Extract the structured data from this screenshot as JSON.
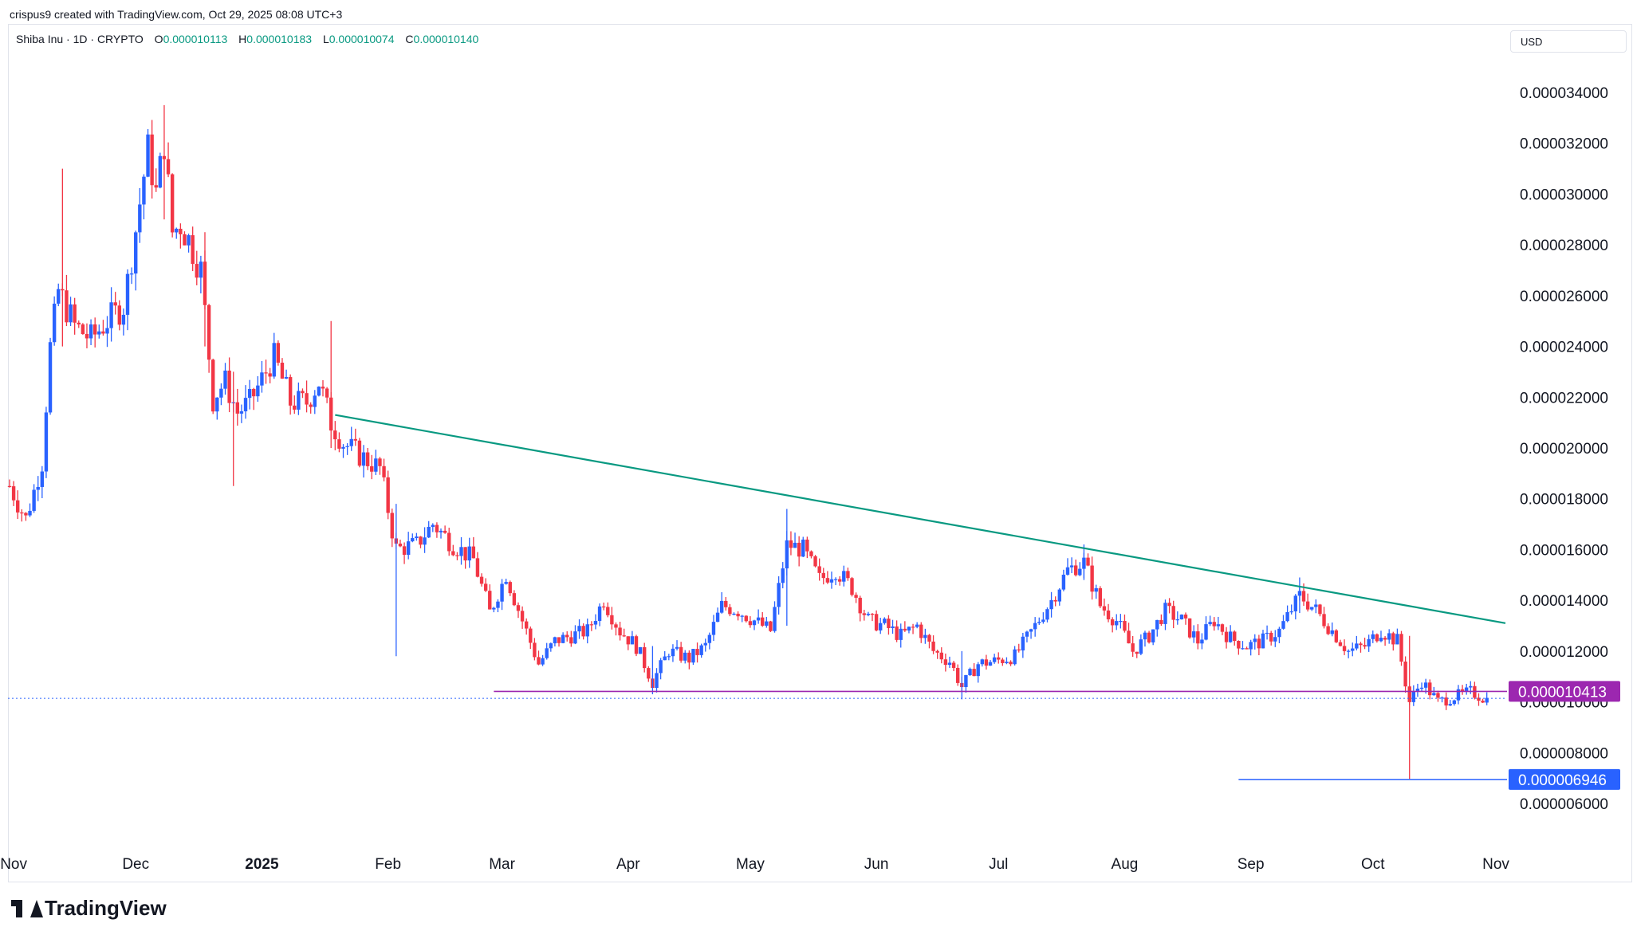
{
  "header": {
    "created_by": "crispus9 created with TradingView.com, Oct 29, 2025 08:08 UTC+3"
  },
  "legend": {
    "symbol": "Shiba Inu · 1D · CRYPTO",
    "o_label": "O",
    "o_value": "0.000010113",
    "h_label": "H",
    "h_value": "0.000010183",
    "l_label": "L",
    "l_value": "0.000010074",
    "c_label": "C",
    "c_value": "0.000010140"
  },
  "currency_button": "USD",
  "brand": "TradingView",
  "colors": {
    "up": "#2962ff",
    "down": "#f23645",
    "trendline": "#089981",
    "support": "#9c27b0",
    "low_line": "#2962ff"
  },
  "chart_data": {
    "type": "candlestick",
    "timeframe": "1D",
    "x_ticks": [
      "Nov",
      "Dec",
      "2025",
      "Feb",
      "Mar",
      "Apr",
      "May",
      "Jun",
      "Jul",
      "Aug",
      "Sep",
      "Oct",
      "Nov"
    ],
    "y_ticks": [
      "0.000034000",
      "0.000032000",
      "0.000030000",
      "0.000028000",
      "0.000026000",
      "0.000024000",
      "0.000022000",
      "0.000020000",
      "0.000018000",
      "0.000016000",
      "0.000014000",
      "0.000012000",
      "0.000010000",
      "0.000008000",
      "0.000006000"
    ],
    "ylim": [
      5e-06,
      3.55e-05
    ],
    "xlim": [
      "2024-10-31",
      "2025-11-01"
    ],
    "price_labels": [
      {
        "text": "0.000010413",
        "value": 1.0413e-05,
        "color": "#9c27b0"
      },
      {
        "text": "0.000006946",
        "value": 6.946e-06,
        "color": "#2962ff"
      }
    ],
    "trendline": {
      "from": {
        "date": "2025-01-19",
        "value": 2.13e-05
      },
      "to": {
        "date": "2025-11-01",
        "value": 1.31e-05
      }
    },
    "support_line": {
      "from": "2025-02-27",
      "to": "2025-11-01",
      "value": 1.0413e-05
    },
    "low_line": {
      "from": "2025-08-29",
      "to": "2025-11-01",
      "value": 6.946e-06
    },
    "last_close": 1.014e-05,
    "closes": [
      {
        "d": "2024-10-31",
        "v": 1.85e-05
      },
      {
        "d": "2024-11-04",
        "v": 1.72e-05
      },
      {
        "d": "2024-11-08",
        "v": 1.94e-05
      },
      {
        "d": "2024-11-10",
        "v": 2.4e-05
      },
      {
        "d": "2024-11-12",
        "v": 2.62e-05
      },
      {
        "d": "2024-11-16",
        "v": 2.48e-05
      },
      {
        "d": "2024-11-20",
        "v": 2.43e-05
      },
      {
        "d": "2024-11-24",
        "v": 2.5e-05
      },
      {
        "d": "2024-11-28",
        "v": 2.56e-05
      },
      {
        "d": "2024-11-30",
        "v": 2.75e-05
      },
      {
        "d": "2024-12-04",
        "v": 3.18e-05
      },
      {
        "d": "2024-12-06",
        "v": 3e-05
      },
      {
        "d": "2024-12-08",
        "v": 3.2e-05
      },
      {
        "d": "2024-12-10",
        "v": 2.85e-05
      },
      {
        "d": "2024-12-12",
        "v": 2.88e-05
      },
      {
        "d": "2024-12-14",
        "v": 2.82e-05
      },
      {
        "d": "2024-12-17",
        "v": 2.7e-05
      },
      {
        "d": "2024-12-20",
        "v": 2.2e-05
      },
      {
        "d": "2024-12-23",
        "v": 2.26e-05
      },
      {
        "d": "2024-12-26",
        "v": 2.14e-05
      },
      {
        "d": "2024-12-29",
        "v": 2.18e-05
      },
      {
        "d": "2025-01-04",
        "v": 2.36e-05
      },
      {
        "d": "2025-01-08",
        "v": 2.18e-05
      },
      {
        "d": "2025-01-12",
        "v": 2.18e-05
      },
      {
        "d": "2025-01-15",
        "v": 2.26e-05
      },
      {
        "d": "2025-01-18",
        "v": 2.1e-05
      },
      {
        "d": "2025-01-21",
        "v": 2.02e-05
      },
      {
        "d": "2025-01-26",
        "v": 1.96e-05
      },
      {
        "d": "2025-01-30",
        "v": 1.92e-05
      },
      {
        "d": "2025-02-03",
        "v": 1.6e-05
      },
      {
        "d": "2025-02-08",
        "v": 1.62e-05
      },
      {
        "d": "2025-02-12",
        "v": 1.7e-05
      },
      {
        "d": "2025-02-17",
        "v": 1.62e-05
      },
      {
        "d": "2025-02-22",
        "v": 1.56e-05
      },
      {
        "d": "2025-02-26",
        "v": 1.35e-05
      },
      {
        "d": "2025-03-02",
        "v": 1.5e-05
      },
      {
        "d": "2025-03-06",
        "v": 1.32e-05
      },
      {
        "d": "2025-03-10",
        "v": 1.15e-05
      },
      {
        "d": "2025-03-14",
        "v": 1.24e-05
      },
      {
        "d": "2025-03-18",
        "v": 1.26e-05
      },
      {
        "d": "2025-03-22",
        "v": 1.28e-05
      },
      {
        "d": "2025-03-26",
        "v": 1.4e-05
      },
      {
        "d": "2025-03-30",
        "v": 1.28e-05
      },
      {
        "d": "2025-04-03",
        "v": 1.22e-05
      },
      {
        "d": "2025-04-07",
        "v": 1.08e-05
      },
      {
        "d": "2025-04-11",
        "v": 1.2e-05
      },
      {
        "d": "2025-04-16",
        "v": 1.17e-05
      },
      {
        "d": "2025-04-20",
        "v": 1.22e-05
      },
      {
        "d": "2025-04-24",
        "v": 1.38e-05
      },
      {
        "d": "2025-04-28",
        "v": 1.36e-05
      },
      {
        "d": "2025-05-02",
        "v": 1.32e-05
      },
      {
        "d": "2025-05-06",
        "v": 1.28e-05
      },
      {
        "d": "2025-05-10",
        "v": 1.62e-05
      },
      {
        "d": "2025-05-14",
        "v": 1.6e-05
      },
      {
        "d": "2025-05-18",
        "v": 1.48e-05
      },
      {
        "d": "2025-05-22",
        "v": 1.52e-05
      },
      {
        "d": "2025-05-26",
        "v": 1.45e-05
      },
      {
        "d": "2025-05-30",
        "v": 1.32e-05
      },
      {
        "d": "2025-06-03",
        "v": 1.3e-05
      },
      {
        "d": "2025-06-07",
        "v": 1.26e-05
      },
      {
        "d": "2025-06-11",
        "v": 1.3e-05
      },
      {
        "d": "2025-06-15",
        "v": 1.2e-05
      },
      {
        "d": "2025-06-19",
        "v": 1.16e-05
      },
      {
        "d": "2025-06-22",
        "v": 1.06e-05
      },
      {
        "d": "2025-06-26",
        "v": 1.15e-05
      },
      {
        "d": "2025-06-30",
        "v": 1.16e-05
      },
      {
        "d": "2025-07-05",
        "v": 1.18e-05
      },
      {
        "d": "2025-07-10",
        "v": 1.3e-05
      },
      {
        "d": "2025-07-14",
        "v": 1.4e-05
      },
      {
        "d": "2025-07-18",
        "v": 1.52e-05
      },
      {
        "d": "2025-07-22",
        "v": 1.55e-05
      },
      {
        "d": "2025-07-26",
        "v": 1.38e-05
      },
      {
        "d": "2025-07-30",
        "v": 1.32e-05
      },
      {
        "d": "2025-08-03",
        "v": 1.2e-05
      },
      {
        "d": "2025-08-07",
        "v": 1.26e-05
      },
      {
        "d": "2025-08-11",
        "v": 1.36e-05
      },
      {
        "d": "2025-08-15",
        "v": 1.32e-05
      },
      {
        "d": "2025-08-19",
        "v": 1.24e-05
      },
      {
        "d": "2025-08-23",
        "v": 1.32e-05
      },
      {
        "d": "2025-08-27",
        "v": 1.25e-05
      },
      {
        "d": "2025-08-31",
        "v": 1.22e-05
      },
      {
        "d": "2025-09-04",
        "v": 1.24e-05
      },
      {
        "d": "2025-09-08",
        "v": 1.28e-05
      },
      {
        "d": "2025-09-13",
        "v": 1.42e-05
      },
      {
        "d": "2025-09-17",
        "v": 1.36e-05
      },
      {
        "d": "2025-09-21",
        "v": 1.28e-05
      },
      {
        "d": "2025-09-25",
        "v": 1.2e-05
      },
      {
        "d": "2025-09-29",
        "v": 1.22e-05
      },
      {
        "d": "2025-10-03",
        "v": 1.28e-05
      },
      {
        "d": "2025-10-07",
        "v": 1.24e-05
      },
      {
        "d": "2025-10-10",
        "v": 1e-05
      },
      {
        "d": "2025-10-13",
        "v": 1.08e-05
      },
      {
        "d": "2025-10-17",
        "v": 1e-05
      },
      {
        "d": "2025-10-21",
        "v": 1.02e-05
      },
      {
        "d": "2025-10-25",
        "v": 1.04e-05
      },
      {
        "d": "2025-10-29",
        "v": 1.01e-05
      }
    ],
    "spikes": [
      {
        "d": "2024-11-13",
        "high": 3.1e-05,
        "low": 2.4e-05
      },
      {
        "d": "2024-12-08",
        "high": 3.35e-05,
        "low": 2.9e-05
      },
      {
        "d": "2024-12-18",
        "high": 2.85e-05,
        "low": 2.4e-05
      },
      {
        "d": "2024-12-25",
        "high": 2.3e-05,
        "low": 1.85e-05
      },
      {
        "d": "2025-01-18",
        "high": 2.5e-05,
        "low": 2e-05
      },
      {
        "d": "2025-02-03",
        "high": 1.78e-05,
        "low": 1.18e-05
      },
      {
        "d": "2025-04-07",
        "high": 1.22e-05,
        "low": 1.03e-05
      },
      {
        "d": "2025-05-10",
        "high": 1.76e-05,
        "low": 1.3e-05
      },
      {
        "d": "2025-06-22",
        "high": 1.2e-05,
        "low": 1.01e-05
      },
      {
        "d": "2025-07-22",
        "high": 1.62e-05,
        "low": 1.48e-05
      },
      {
        "d": "2025-09-13",
        "high": 1.49e-05,
        "low": 1.35e-05
      },
      {
        "d": "2025-10-10",
        "high": 1.26e-05,
        "low": 6.946e-06
      }
    ]
  }
}
